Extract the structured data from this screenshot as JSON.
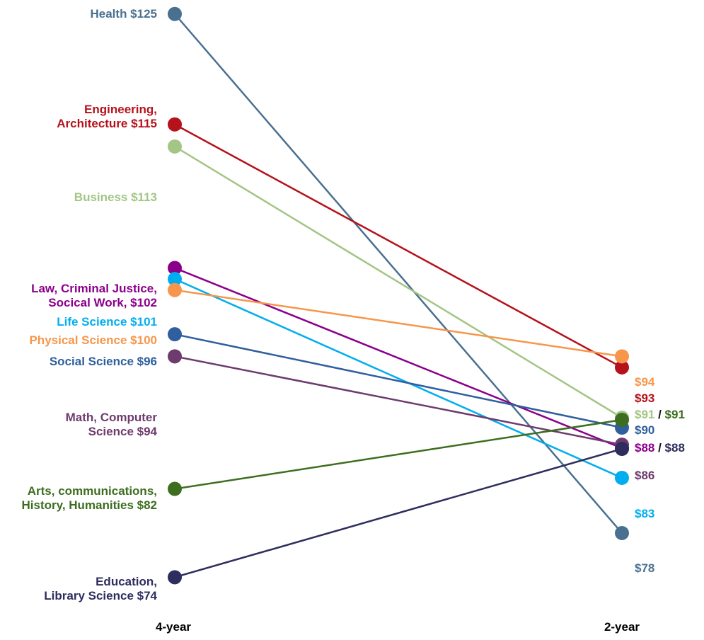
{
  "chart_data": {
    "type": "slope",
    "x": [
      "4-year",
      "2-year"
    ],
    "y_prefix": "$",
    "ylim": [
      70,
      128
    ],
    "series": [
      {
        "name": "Health",
        "left_label_lines": [
          "Health $125"
        ],
        "values": [
          125,
          78
        ],
        "right_label": "$78",
        "color": "#4a7090"
      },
      {
        "name": "Engineering, Architecture",
        "left_label_lines": [
          "Engineering,",
          "Architecture $115"
        ],
        "values": [
          115,
          93
        ],
        "right_label": "$93",
        "color": "#b5121b"
      },
      {
        "name": "Business",
        "left_label_lines": [
          "Business $113"
        ],
        "values": [
          113,
          91
        ],
        "right_label": "$91",
        "color": "#a3c585"
      },
      {
        "name": "Law, Criminal Justice, Socical Work",
        "left_label_lines": [
          "Law, Criminal Justice,",
          "Socical Work, $102"
        ],
        "values": [
          102,
          88
        ],
        "right_label": "$88",
        "color": "#8b008b"
      },
      {
        "name": "Life Science",
        "left_label_lines": [
          "Life Science $101"
        ],
        "values": [
          101,
          83
        ],
        "right_label": "$83",
        "color": "#00aeef"
      },
      {
        "name": "Physical Science",
        "left_label_lines": [
          "Physical Science $100"
        ],
        "values": [
          100,
          94
        ],
        "right_label": "$94",
        "color": "#f7964a"
      },
      {
        "name": "Social Science",
        "left_label_lines": [
          "Social Science $96"
        ],
        "values": [
          96,
          90
        ],
        "right_label": "$90",
        "color": "#2f5f9e"
      },
      {
        "name": "Math, Computer Science",
        "left_label_lines": [
          "Math, Computer",
          "Science $94"
        ],
        "values": [
          94,
          86
        ],
        "right_label": "$86",
        "color": "#6e3b6e"
      },
      {
        "name": "Arts, communications, History, Humanities",
        "left_label_lines": [
          "Arts, communications,",
          "History, Humanities $82"
        ],
        "values": [
          82,
          91
        ],
        "right_label": "$91",
        "color": "#3d6e1f"
      },
      {
        "name": "Education, Library Science",
        "left_label_lines": [
          "Education,",
          "Library Science $74"
        ],
        "values": [
          74,
          88
        ],
        "right_label": "$88",
        "color": "#2e2d5e"
      }
    ],
    "right_label_separator": "/"
  }
}
